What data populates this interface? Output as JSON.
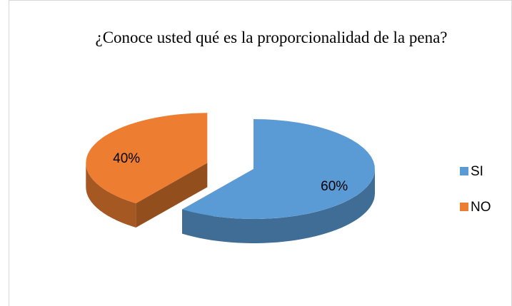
{
  "chart_data": {
    "type": "pie",
    "title": "¿Conoce usted qué es la proporcionalidad de la pena?",
    "categories": [
      "SI",
      "NO"
    ],
    "values": [
      60,
      40
    ],
    "value_labels": [
      "60%",
      "40%"
    ],
    "colors": [
      "#5b9bd5",
      "#ed7d31"
    ],
    "legend": "right"
  }
}
